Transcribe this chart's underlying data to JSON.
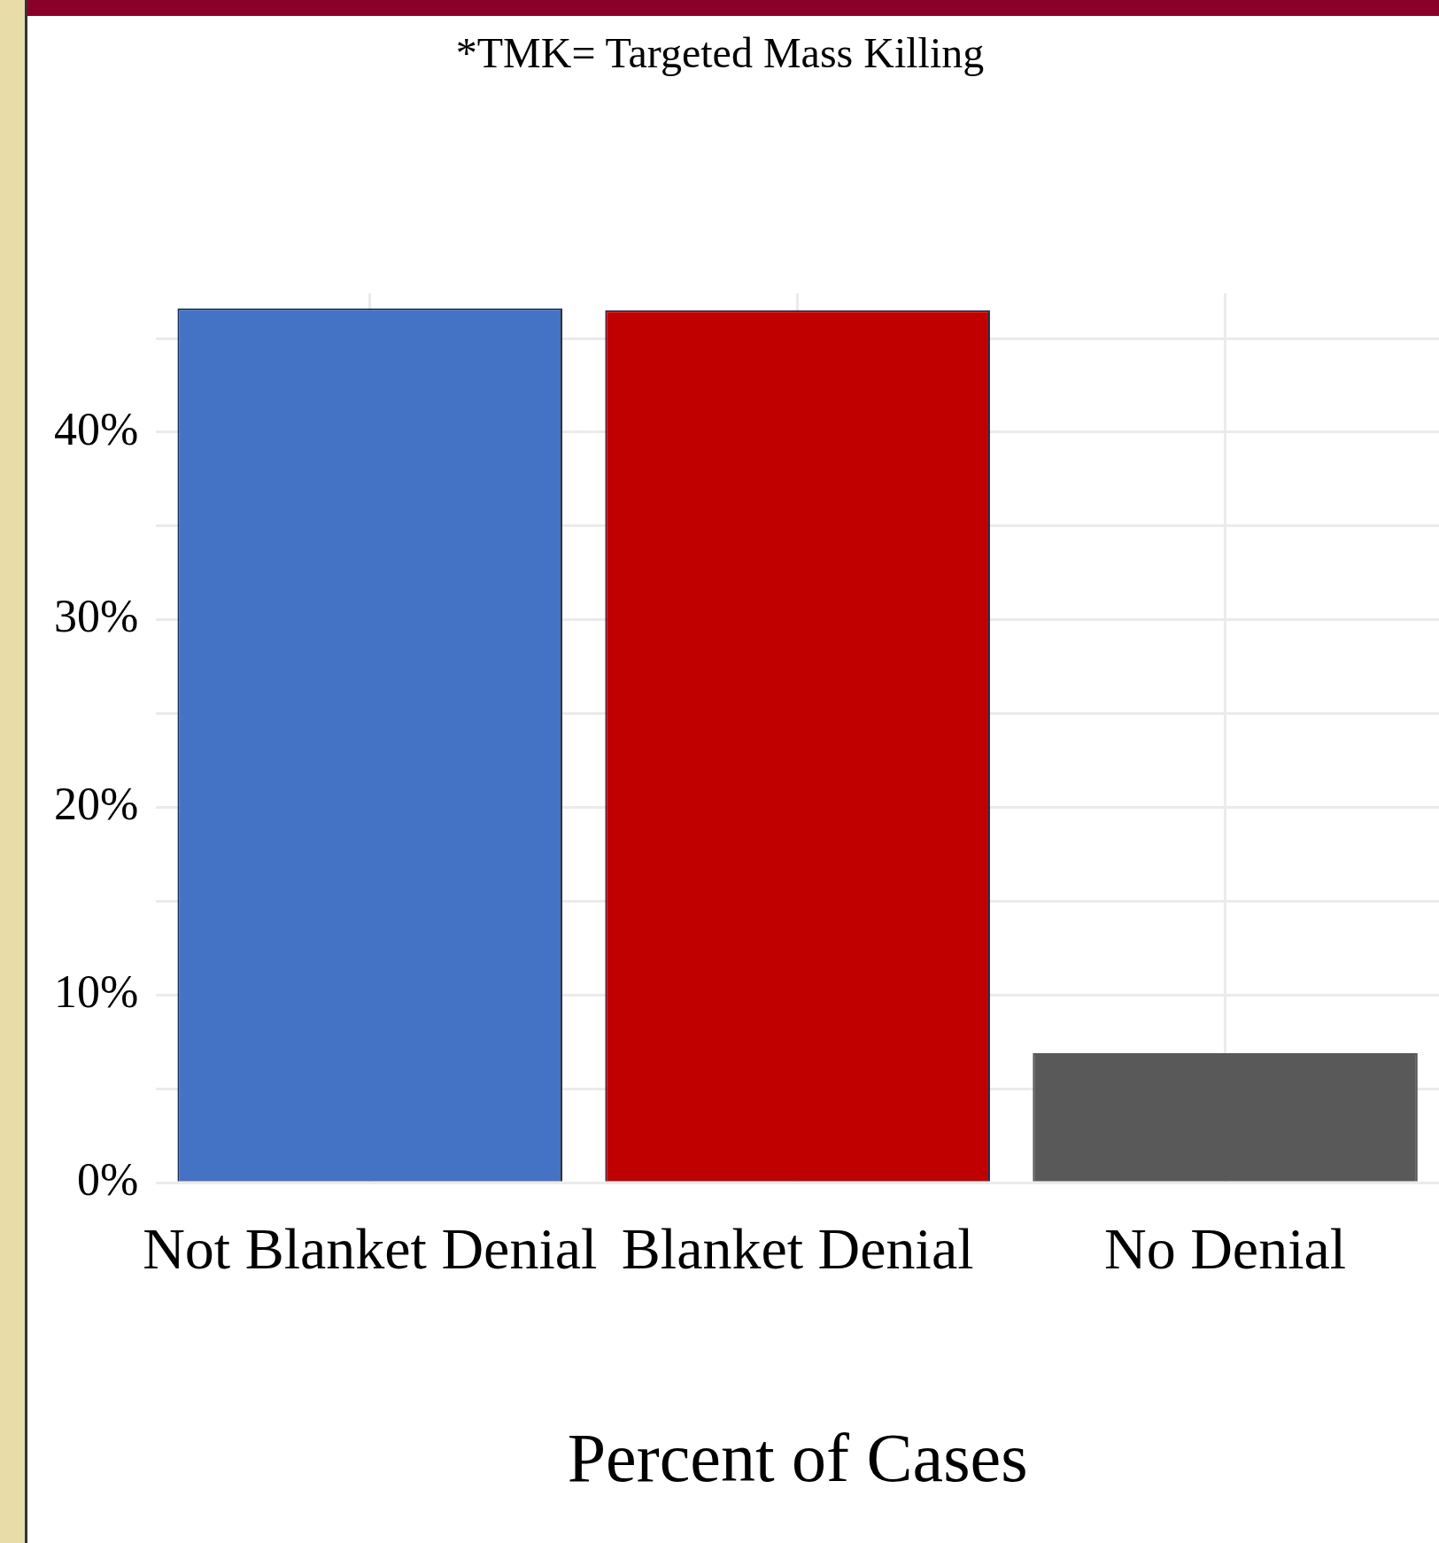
{
  "chart_data": {
    "type": "bar",
    "annotations": [
      "*TMK= Targeted Mass Killing"
    ],
    "xlabel": "Percent of Cases",
    "categories": [
      "Not Blanket Denial",
      "Blanket Denial",
      "No Denial"
    ],
    "values": [
      46.6,
      46.5,
      6.9
    ],
    "colors": [
      "#4472c4",
      "#c00000",
      "#595959"
    ],
    "ylim": [
      0,
      47.4
    ],
    "yticks": [
      {
        "value": 0,
        "label": "0%"
      },
      {
        "value": 5,
        "label": null
      },
      {
        "value": 10,
        "label": "10%"
      },
      {
        "value": 15,
        "label": null
      },
      {
        "value": 20,
        "label": "20%"
      },
      {
        "value": 25,
        "label": null
      },
      {
        "value": 30,
        "label": "30%"
      },
      {
        "value": 35,
        "label": null
      },
      {
        "value": 40,
        "label": "40%"
      },
      {
        "value": 45,
        "label": null
      }
    ],
    "grid": true,
    "legend": false
  }
}
